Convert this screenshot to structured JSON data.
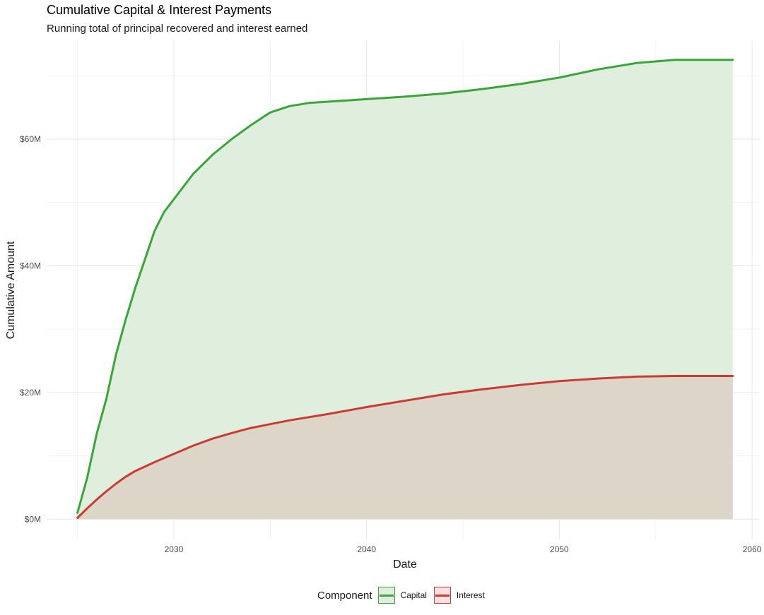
{
  "chart_data": {
    "type": "area",
    "title": "Cumulative Capital & Interest Payments",
    "subtitle": "Running total of principal recovered and interest earned",
    "xlabel": "Date",
    "ylabel": "Cumulative Amount",
    "xlim": [
      2023.4,
      2060.4
    ],
    "ylim": [
      -3.2,
      75.6
    ],
    "x_ticks": [
      2030,
      2040,
      2050,
      2060
    ],
    "x_tick_labels": [
      "2030",
      "2040",
      "2050",
      "2060"
    ],
    "y_ticks": [
      0,
      20,
      40,
      60
    ],
    "y_tick_labels": [
      "$0M",
      "$20M",
      "$40M",
      "$60M"
    ],
    "grid": true,
    "legend": {
      "title": "Component",
      "position": "bottom"
    },
    "series": [
      {
        "name": "Capital",
        "color": "#3aa63a",
        "fill": "#dfeedd",
        "x": [
          2025.0,
          2025.5,
          2026.0,
          2026.5,
          2027.0,
          2027.5,
          2028.0,
          2028.5,
          2029.0,
          2029.5,
          2030.0,
          2031.0,
          2032.0,
          2033.0,
          2034.0,
          2035.0,
          2036.0,
          2037.0,
          2038.0,
          2039.0,
          2040.0,
          2042.0,
          2044.0,
          2046.0,
          2048.0,
          2050.0,
          2052.0,
          2054.0,
          2056.0,
          2058.0,
          2059.0
        ],
        "values": [
          1.0,
          6.5,
          13.5,
          19.0,
          26.0,
          31.5,
          36.5,
          41.0,
          45.5,
          48.5,
          50.5,
          54.5,
          57.5,
          60.0,
          62.2,
          64.2,
          65.2,
          65.7,
          65.9,
          66.1,
          66.3,
          66.7,
          67.2,
          67.9,
          68.7,
          69.7,
          71.0,
          72.0,
          72.5,
          72.5,
          72.5
        ]
      },
      {
        "name": "Interest",
        "color": "#cc3a35",
        "fill": "#ddd1c4",
        "x": [
          2025.0,
          2025.5,
          2026.0,
          2026.5,
          2027.0,
          2027.5,
          2028.0,
          2029.0,
          2030.0,
          2031.0,
          2032.0,
          2033.0,
          2034.0,
          2035.0,
          2036.0,
          2038.0,
          2040.0,
          2042.0,
          2044.0,
          2046.0,
          2048.0,
          2050.0,
          2052.0,
          2054.0,
          2056.0,
          2058.0,
          2059.0
        ],
        "values": [
          0.2,
          1.7,
          3.1,
          4.4,
          5.6,
          6.7,
          7.6,
          9.0,
          10.3,
          11.6,
          12.7,
          13.6,
          14.4,
          15.0,
          15.6,
          16.6,
          17.7,
          18.7,
          19.7,
          20.5,
          21.2,
          21.8,
          22.2,
          22.5,
          22.6,
          22.6,
          22.6
        ]
      }
    ]
  }
}
